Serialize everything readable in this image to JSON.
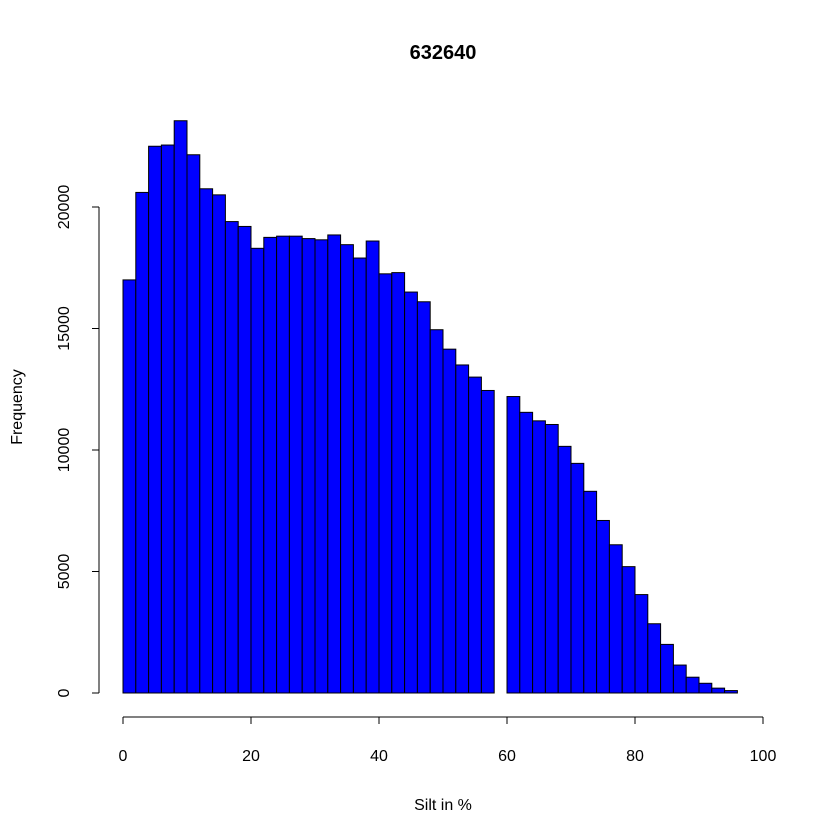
{
  "chart_data": {
    "type": "bar",
    "title": "632640",
    "xlabel": "Silt in %",
    "ylabel": "Frequency",
    "bar_color": "#0000ff",
    "bin_width": 2,
    "xlim": [
      0,
      100
    ],
    "ylim": [
      0,
      24000
    ],
    "x_ticks": [
      0,
      20,
      40,
      60,
      80,
      100
    ],
    "y_ticks": [
      0,
      5000,
      10000,
      15000,
      20000
    ],
    "bins": [
      0,
      2,
      4,
      6,
      8,
      10,
      12,
      14,
      16,
      18,
      20,
      22,
      24,
      26,
      28,
      30,
      32,
      34,
      36,
      38,
      40,
      42,
      44,
      46,
      48,
      50,
      52,
      54,
      56,
      60,
      62,
      64,
      66,
      68,
      70,
      72,
      74,
      76,
      78,
      80,
      82,
      84,
      86,
      88,
      90,
      92,
      94,
      96,
      98
    ],
    "values": [
      17000,
      20600,
      22500,
      22550,
      23550,
      22150,
      20750,
      20500,
      19400,
      19200,
      18300,
      18750,
      18800,
      18800,
      18700,
      18650,
      18850,
      18450,
      17900,
      18600,
      17250,
      17300,
      16500,
      16100,
      14950,
      14150,
      13500,
      13000,
      12450,
      12200,
      11550,
      11200,
      11050,
      10150,
      9450,
      8300,
      7100,
      6100,
      5200,
      4050,
      2850,
      2000,
      1150,
      650,
      400,
      200,
      100,
      0,
      0
    ]
  }
}
